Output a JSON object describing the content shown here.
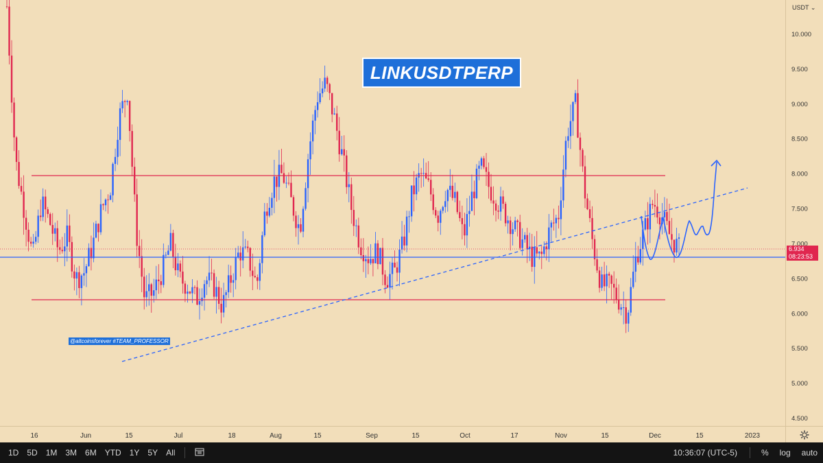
{
  "symbol_title": "LINKUSDTPERP",
  "watermark": "@altcoinsforever #TEAM_PROFESSOR",
  "currency": "USDT",
  "currency_chevron": "⌄",
  "last_price": "6.934",
  "countdown": "08:23:53",
  "price_ticks": [
    "10.000",
    "9.500",
    "9.000",
    "8.500",
    "8.000",
    "7.500",
    "7.000",
    "6.500",
    "6.000",
    "5.500",
    "5.000",
    "4.500"
  ],
  "time_ticks": [
    "16",
    "Jun",
    "15",
    "Jul",
    "18",
    "Aug",
    "15",
    "Sep",
    "15",
    "Oct",
    "17",
    "Nov",
    "15",
    "Dec",
    "15",
    "2023"
  ],
  "timeframes": [
    "1D",
    "5D",
    "1M",
    "3M",
    "6M",
    "YTD",
    "1Y",
    "5Y",
    "All"
  ],
  "clock": "10:36:07 (UTC-5)",
  "scale_buttons": [
    "%",
    "log",
    "auto"
  ],
  "colors": {
    "up": "#2962ff",
    "down": "#e0264f",
    "background": "#f2deba",
    "title_bg": "#1e6fd9"
  },
  "icons": {
    "compare": "compare-range-icon",
    "settings": "gear-icon"
  },
  "chart_data": {
    "type": "candlestick",
    "ylim": [
      4.3,
      10.6
    ],
    "close_series": [
      10.4,
      8.2,
      7.5,
      6.8,
      7.6,
      7.3,
      6.9,
      7.1,
      6.5,
      6.6,
      7.0,
      7.5,
      7.8,
      8.8,
      9.2,
      7.2,
      6.2,
      6.3,
      6.6,
      7.0,
      6.5,
      6.4,
      6.2,
      6.5,
      6.4,
      6.1,
      6.5,
      6.9,
      6.8,
      6.4,
      7.5,
      7.9,
      8.0,
      7.6,
      7.2,
      8.3,
      9.1,
      9.3,
      8.8,
      8.2,
      7.5,
      7.0,
      6.8,
      6.9,
      6.5,
      6.6,
      7.0,
      7.7,
      8.0,
      7.8,
      7.4,
      7.8,
      7.6,
      7.1,
      7.7,
      8.1,
      7.8,
      7.6,
      7.4,
      7.2,
      7.0,
      6.8,
      6.8,
      7.2,
      7.4,
      8.6,
      9.0,
      7.8,
      7.0,
      6.4,
      6.4,
      6.2,
      6.0,
      6.8,
      7.2,
      7.6,
      7.4,
      7.1,
      6.93
    ]
  }
}
